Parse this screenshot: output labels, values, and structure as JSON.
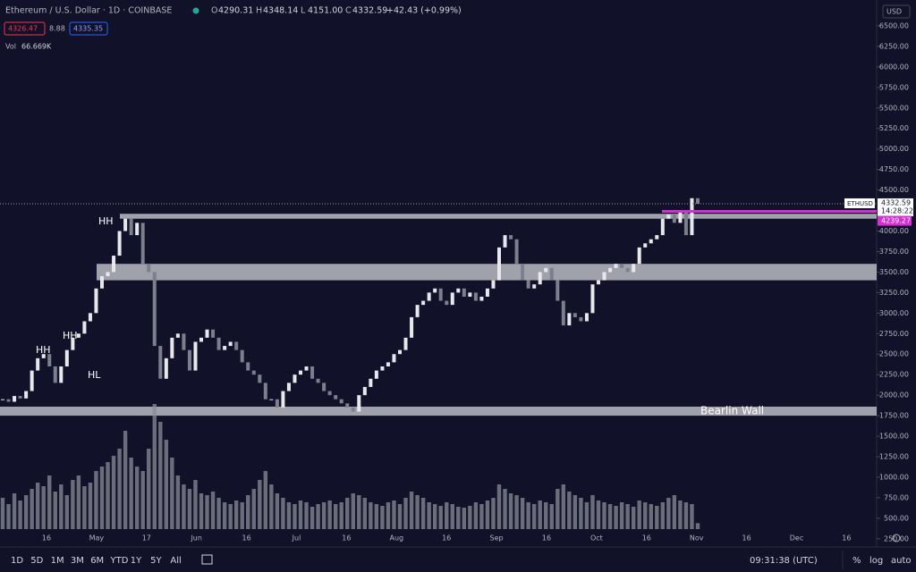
{
  "header": {
    "symbol": "Ethereum / U.S. Dollar · 1D · COINBASE",
    "ohlc": [
      {
        "key": "O",
        "value": "4290.31"
      },
      {
        "key": "H",
        "value": "4348.14"
      },
      {
        "key": "L",
        "value": "4151.00"
      },
      {
        "key": "C",
        "value": "4332.59"
      }
    ],
    "change": "+42.43 (+0.99%)",
    "sell": "4326.47",
    "spread": "8.88",
    "buy": "4335.35",
    "vol_label": "Vol",
    "vol_value": "66.669K"
  },
  "currency": "USD",
  "chart_data": {
    "type": "candlestick",
    "closes": [
      1950,
      1920,
      1990,
      1960,
      2050,
      2300,
      2450,
      2500,
      2350,
      2150,
      2350,
      2550,
      2700,
      2750,
      2900,
      3000,
      3300,
      3450,
      3500,
      3700,
      4000,
      4150,
      3950,
      4100,
      3600,
      3500,
      2600,
      2200,
      2450,
      2700,
      2750,
      2550,
      2300,
      2650,
      2700,
      2800,
      2700,
      2550,
      2600,
      2650,
      2550,
      2400,
      2300,
      2250,
      2150,
      1950,
      1950,
      1850,
      2050,
      2150,
      2250,
      2300,
      2350,
      2200,
      2150,
      2050,
      2000,
      1950,
      1900,
      1850,
      1800,
      2000,
      2100,
      2200,
      2300,
      2350,
      2400,
      2500,
      2550,
      2700,
      2950,
      3100,
      3150,
      3250,
      3300,
      3150,
      3100,
      3250,
      3300,
      3200,
      3250,
      3150,
      3200,
      3300,
      3400,
      3800,
      3950,
      3900,
      3600,
      3400,
      3300,
      3350,
      3500,
      3550,
      3400,
      3150,
      2850,
      3000,
      2950,
      2900,
      3000,
      3350,
      3400,
      3500,
      3550,
      3600,
      3550,
      3500,
      3600,
      3800,
      3850,
      3900,
      3950,
      4150,
      4200,
      4100,
      4250,
      3950,
      4400,
      4332.59
    ],
    "volumes": [
      350,
      280,
      400,
      320,
      380,
      450,
      520,
      480,
      600,
      420,
      500,
      380,
      550,
      600,
      480,
      520,
      650,
      700,
      750,
      820,
      900,
      1100,
      800,
      700,
      650,
      900,
      1400,
      1200,
      1000,
      800,
      600,
      500,
      450,
      550,
      400,
      380,
      420,
      350,
      300,
      280,
      320,
      300,
      380,
      450,
      550,
      650,
      500,
      400,
      350,
      300,
      280,
      320,
      300,
      250,
      280,
      300,
      320,
      280,
      300,
      350,
      400,
      380,
      350,
      300,
      280,
      260,
      300,
      320,
      280,
      350,
      420,
      380,
      350,
      300,
      280,
      260,
      300,
      280,
      250,
      240,
      260,
      300,
      280,
      320,
      350,
      500,
      450,
      400,
      380,
      350,
      300,
      280,
      320,
      300,
      280,
      450,
      500,
      420,
      380,
      350,
      300,
      380,
      320,
      300,
      280,
      260,
      300,
      280,
      250,
      320,
      300,
      280,
      260,
      300,
      350,
      380,
      320,
      300,
      280,
      66.669
    ],
    "ylim": [
      6750,
      150
    ],
    "yticks": [
      {
        "value": 250,
        "label": "250.00"
      },
      {
        "value": 500,
        "label": "500.00"
      },
      {
        "value": 750,
        "label": "750.00"
      },
      {
        "value": 1000,
        "label": "1000.00"
      },
      {
        "value": 1250,
        "label": "1250.00"
      },
      {
        "value": 1500,
        "label": "1500.00"
      },
      {
        "value": 1750,
        "label": "1750.00"
      },
      {
        "value": 2000,
        "label": "2000.00"
      },
      {
        "value": 2250,
        "label": "2250.00"
      },
      {
        "value": 2500,
        "label": "2500.00"
      },
      {
        "value": 2750,
        "label": "2750.00"
      },
      {
        "value": 3000,
        "label": "3000.00"
      },
      {
        "value": 3250,
        "label": "3250.00"
      },
      {
        "value": 3500,
        "label": "3500.00"
      },
      {
        "value": 3750,
        "label": "3750.00"
      },
      {
        "value": 4000,
        "label": "4000.00"
      },
      {
        "value": 4250,
        "label": "4250.00"
      },
      {
        "value": 4500,
        "label": "4500.00"
      },
      {
        "value": 4750,
        "label": "4750.00"
      },
      {
        "value": 5000,
        "label": "5000.00"
      },
      {
        "value": 5250,
        "label": "5250.00"
      },
      {
        "value": 5500,
        "label": "5500.00"
      },
      {
        "value": 5750,
        "label": "5750.00"
      },
      {
        "value": 6000,
        "label": "6000.00"
      },
      {
        "value": 6250,
        "label": "6250.00"
      },
      {
        "value": 6500,
        "label": "6500.00"
      }
    ],
    "xtick_labels": [
      "16",
      "May",
      "17",
      "Jun",
      "16",
      "Jul",
      "16",
      "Aug",
      "16",
      "Sep",
      "16",
      "Oct",
      "16",
      "Nov",
      "16",
      "Dec",
      "16"
    ],
    "zones": [
      {
        "low": 4150,
        "high": 4210
      },
      {
        "low": 3400,
        "high": 3600
      },
      {
        "low": 1750,
        "high": 1860,
        "label": "Bearlin Wall"
      }
    ],
    "annotations": [
      "HH",
      "HH",
      "HH",
      "HL"
    ],
    "last_price": {
      "symbol": "ETHUSD",
      "value": 4332.59,
      "countdown": "14:28:22"
    },
    "marker_price": {
      "value": 4239.27
    },
    "up_color": "#e8e8ec",
    "down_color": "#7c7f8c",
    "volume_color": "#8a8c96"
  },
  "toolbar": {
    "ranges": [
      "1D",
      "5D",
      "1M",
      "3M",
      "6M",
      "YTD",
      "1Y",
      "5Y",
      "All"
    ],
    "clock": "09:31:38 (UTC)",
    "percent": "%",
    "log": "log",
    "auto": "auto"
  }
}
